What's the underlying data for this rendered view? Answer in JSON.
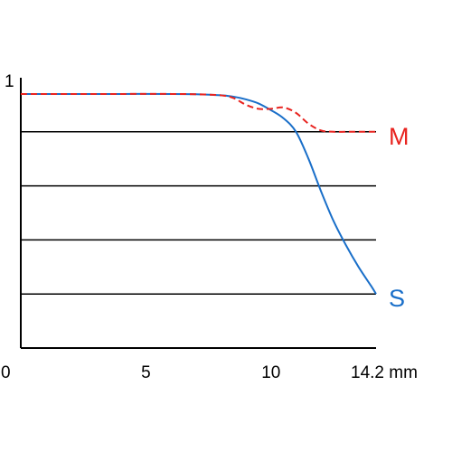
{
  "chart_data": {
    "type": "line",
    "xlim": [
      0,
      14.2
    ],
    "ylim": [
      0,
      1
    ],
    "x_ticks": [
      {
        "value": 0,
        "label": "0"
      },
      {
        "value": 5,
        "label": "5"
      },
      {
        "value": 10,
        "label": "10"
      },
      {
        "value": 14.2,
        "label": "14.2 mm"
      }
    ],
    "y_ticks": [
      {
        "value": 1,
        "label": "1"
      }
    ],
    "gridlines_y": [
      0.2,
      0.4,
      0.6,
      0.8
    ],
    "series": [
      {
        "name": "S",
        "color": "#1a6fc9",
        "style": "solid",
        "x": [
          0,
          2,
          4,
          6,
          7,
          8,
          8.5,
          9,
          9.5,
          10,
          10.5,
          11,
          11.5,
          12,
          12.5,
          13,
          13.5,
          14,
          14.2
        ],
        "y": [
          0.94,
          0.94,
          0.94,
          0.94,
          0.939,
          0.935,
          0.93,
          0.92,
          0.905,
          0.88,
          0.85,
          0.8,
          0.7,
          0.58,
          0.47,
          0.38,
          0.3,
          0.23,
          0.2
        ]
      },
      {
        "name": "M",
        "color": "#e8231f",
        "style": "dashed",
        "x": [
          0,
          2,
          4,
          6,
          7,
          8,
          8.5,
          9,
          9.5,
          10,
          10.5,
          11,
          11.5,
          12,
          12.5,
          13,
          13.5,
          14,
          14.2
        ],
        "y": [
          0.94,
          0.94,
          0.94,
          0.94,
          0.939,
          0.935,
          0.925,
          0.9,
          0.885,
          0.885,
          0.89,
          0.87,
          0.83,
          0.805,
          0.8,
          0.8,
          0.8,
          0.8,
          0.8
        ]
      }
    ]
  }
}
